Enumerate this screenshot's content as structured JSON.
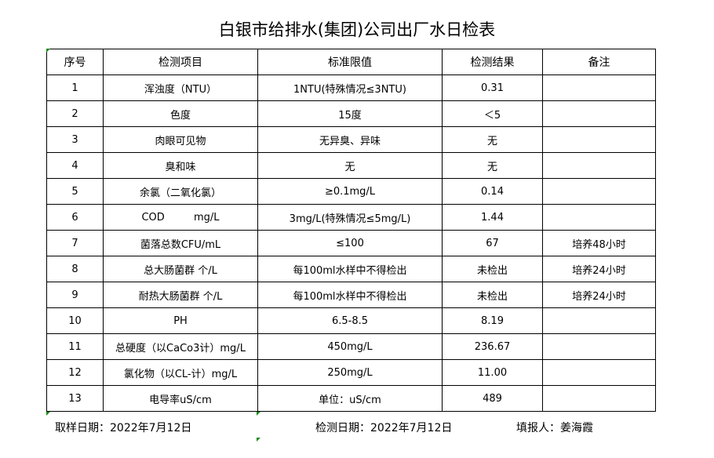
{
  "title": "白银市给排水(集团)公司出厂水日检表",
  "columns": [
    "序号",
    "检测项目",
    "标准限值",
    "检测结果",
    "备注"
  ],
  "rows": [
    [
      "1",
      "浑浊度（NTU）",
      "1NTU(特殊情况≤3NTU)",
      "0.31",
      ""
    ],
    [
      "2",
      "色度",
      "15度",
      "＜5",
      ""
    ],
    [
      "3",
      "肉眼可见物",
      "无异臭、异味",
      "无",
      ""
    ],
    [
      "4",
      "臭和味",
      "无",
      "无",
      ""
    ],
    [
      "5",
      "余氯（二氧化氯）",
      "≥0.1mg/L",
      "0.14",
      ""
    ],
    [
      "6",
      "COD         mg/L",
      "3mg/L(特殊情况≤5mg/L)",
      "1.44",
      ""
    ],
    [
      "7",
      "菌落总数CFU/mL",
      "≤100",
      "67",
      "培养48小时"
    ],
    [
      "8",
      "总大肠菌群 个/L",
      "每100ml水样中不得检出",
      "未检出",
      "培养24小时"
    ],
    [
      "9",
      "耐热大肠菌群 个/L",
      "每100ml水样中不得检出",
      "未检出",
      "培养24小时"
    ],
    [
      "10",
      "PH",
      "6.5-8.5",
      "8.19",
      ""
    ],
    [
      "11",
      "总硬度（以CaCo3计）mg/L",
      "450mg/L",
      "236.67",
      ""
    ],
    [
      "12",
      "氯化物（以CL-计）mg/L",
      "250mg/L",
      "11.00",
      ""
    ],
    [
      "13",
      "电导率uS/cm",
      "单位：uS/cm",
      "489",
      ""
    ]
  ],
  "footer": {
    "sampling_date": "取样日期：2022年7月12日",
    "test_date": "检测日期：2022年7月12日",
    "filled_by": "填报人：姜海霞"
  }
}
